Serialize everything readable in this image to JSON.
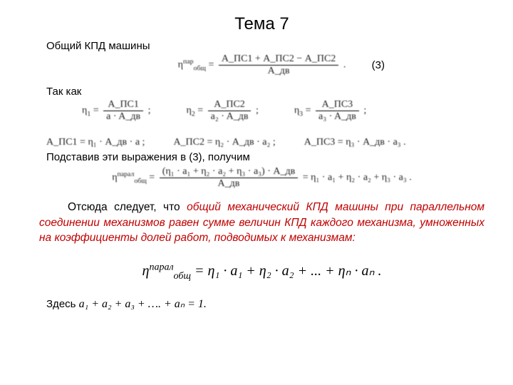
{
  "title": "Тема 7",
  "line1": "Общий КПД машины",
  "eq3_label": "(3)",
  "eq3": {
    "lhs_sym": "η",
    "lhs_sup": "пар",
    "lhs_sub": "общ",
    "num": "A_ПС1 + A_ПС2 − A_ПС2",
    "den": "A_дв"
  },
  "line2": "Так как",
  "eta_defs": [
    {
      "sym": "η",
      "sub": "1",
      "num": "A_ПС1",
      "den": "a · A_дв"
    },
    {
      "sym": "η",
      "sub": "2",
      "num": "A_ПС2",
      "den": "a₂ · A_дв"
    },
    {
      "sym": "η",
      "sub": "3",
      "num": "A_ПС3",
      "den": "a₃ · A_дв"
    }
  ],
  "hc_terms": [
    "A_ПС1 = η₁ · A_дв · a ;",
    "A_ПС2 = η₂ · A_дв · a₂ ;",
    "A_ПС3 = η₃ · A_дв · a₃ ."
  ],
  "line4": "Подставив эти выражения в (3), получим",
  "big_eq": {
    "lhs": "η",
    "lhs_sup": "парал",
    "lhs_sub": "общ",
    "num": "(η₁ · a₁ + η₂ · a₂ + η₃ · a₃) · A_дв",
    "den": "A_дв",
    "rhs": "= η₁ · a₁ + η₂ · a₂ + η₃ · a₃ ."
  },
  "para_black": "Отсюда следует, что ",
  "para_red": "общий механический КПД машины при параллельном соединении механизмов равен сумме величин КПД каждого механизма, умноженных на коэффициенты долей работ, подводимых к механизмам",
  "para_colon": ":",
  "final_eq": "η<sub>общ</sub><sup>парал</sup> = η₁ · a₁ + η₂ · a₂ + ... + η<sub>n</sub> · a<sub>n</sub> .",
  "final_parts": {
    "eta": "η",
    "sup": "парал",
    "sub": "общ",
    "rhs": " = η₁ · a₁ + η₂ · a₂ + ... + ηₙ · aₙ ."
  },
  "last_prefix": "Здесь ",
  "last_expr": "a₁ + a₂ + a₃ + …. + aₙ = 1.",
  "colors": {
    "text": "#000000",
    "emphasis": "#c00000",
    "bg": "#ffffff"
  }
}
